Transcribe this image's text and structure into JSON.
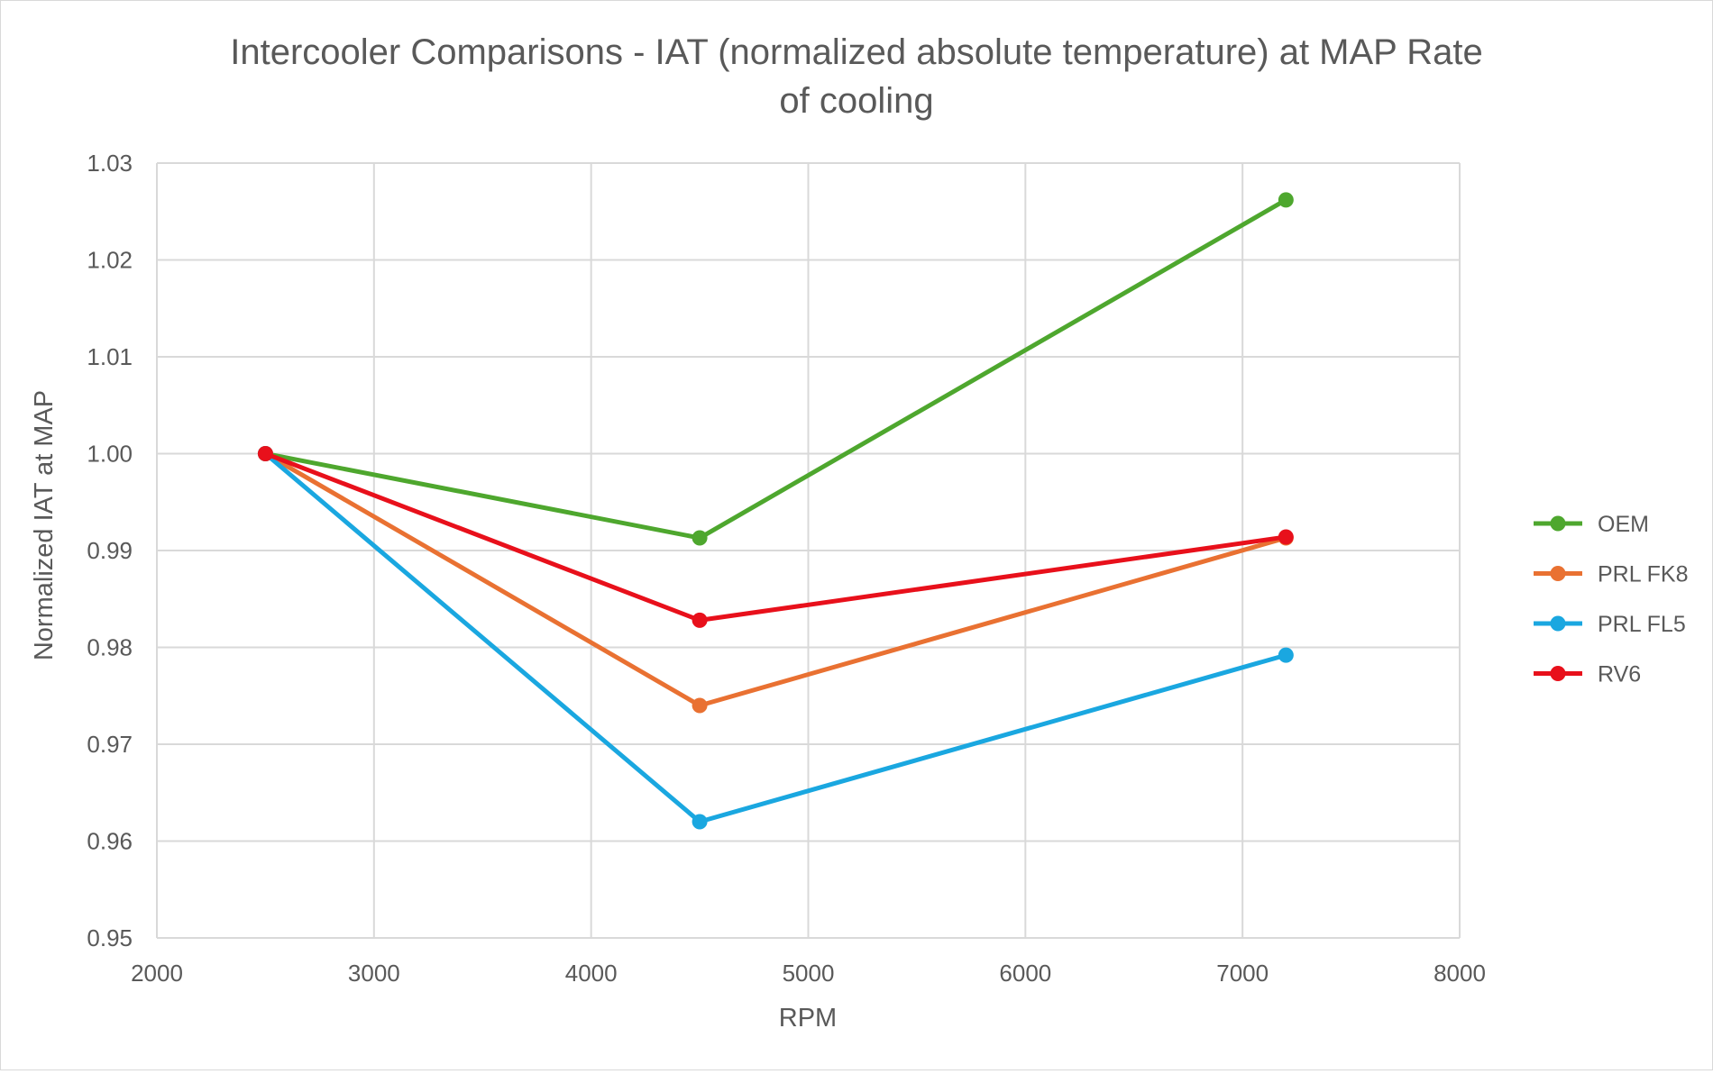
{
  "chart_data": {
    "type": "line",
    "title_lines": [
      "Intercooler Comparisons - IAT (normalized absolute temperature) at MAP Rate",
      "of cooling"
    ],
    "xlabel": "RPM",
    "ylabel": "Normalized IAT at MAP",
    "xlim": [
      2000,
      8000
    ],
    "ylim": [
      0.95,
      1.03
    ],
    "x_ticks": [
      2000,
      3000,
      4000,
      5000,
      6000,
      7000,
      8000
    ],
    "x_tick_labels": [
      "2000",
      "3000",
      "4000",
      "5000",
      "6000",
      "7000",
      "8000"
    ],
    "y_ticks": [
      0.95,
      0.96,
      0.97,
      0.98,
      0.99,
      1.0,
      1.01,
      1.02,
      1.03
    ],
    "y_tick_labels": [
      "0.95",
      "0.96",
      "0.97",
      "0.98",
      "0.99",
      "1.00",
      "1.01",
      "1.02",
      "1.03"
    ],
    "grid": true,
    "legend_position": "right",
    "x": [
      2500,
      4500,
      7200
    ],
    "series": [
      {
        "name": "OEM",
        "color": "#4ea72e",
        "values": [
          1.0,
          0.9913,
          1.0262
        ]
      },
      {
        "name": "PRL FK8",
        "color": "#e97132",
        "values": [
          1.0,
          0.974,
          0.9913
        ]
      },
      {
        "name": "PRL FL5",
        "color": "#1aa7e0",
        "values": [
          1.0,
          0.962,
          0.9792
        ]
      },
      {
        "name": "RV6",
        "color": "#e8101b",
        "values": [
          1.0,
          0.9828,
          0.9914
        ]
      }
    ]
  }
}
